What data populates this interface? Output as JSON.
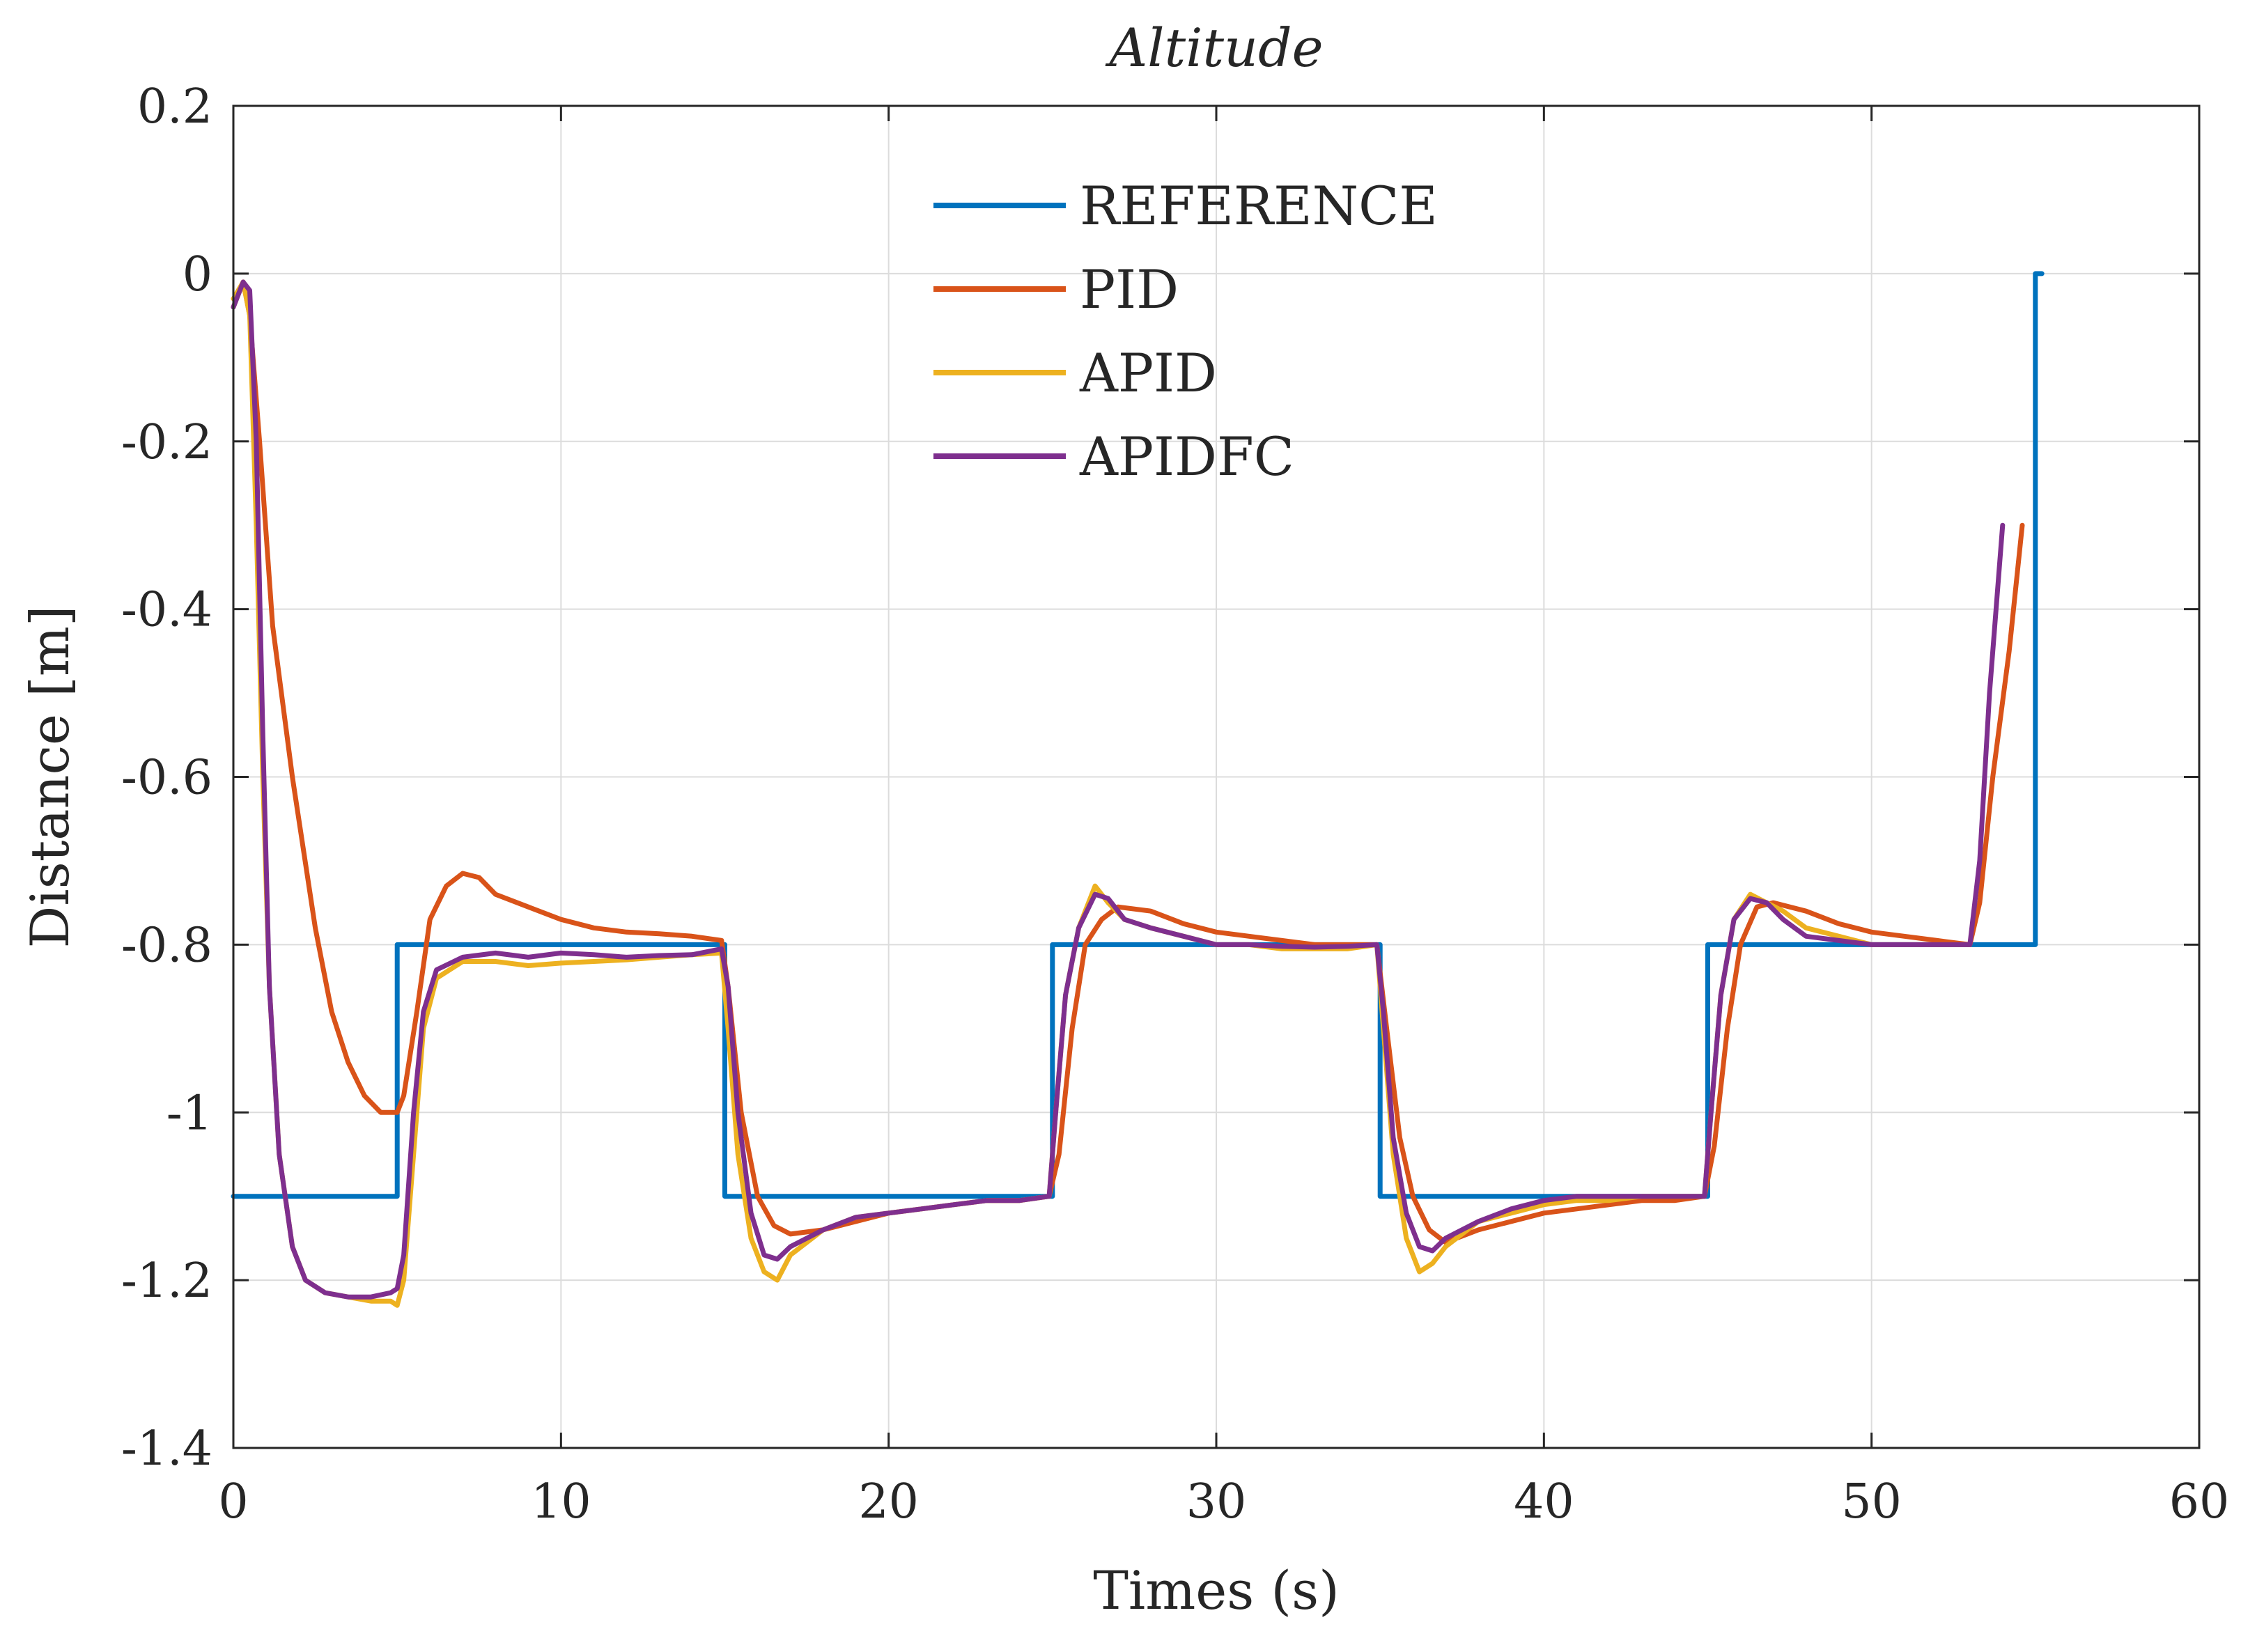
{
  "chart_data": {
    "type": "line",
    "title": "Altitude",
    "xlabel": "Times (s)",
    "ylabel": "Distance [m]",
    "xlim": [
      0,
      60
    ],
    "ylim": [
      -1.4,
      0.2
    ],
    "xticks": [
      0,
      10,
      20,
      30,
      40,
      50,
      60
    ],
    "xtick_labels": [
      "0",
      "10",
      "20",
      "30",
      "40",
      "50",
      "60"
    ],
    "yticks": [
      0.2,
      0,
      -0.2,
      -0.4,
      -0.6,
      -0.8,
      -1,
      -1.2,
      -1.4
    ],
    "ytick_labels": [
      "0.2",
      "0",
      "-0.2",
      "-0.4",
      "-0.6",
      "-0.8",
      "-1",
      "-1.2",
      "-1.4"
    ],
    "grid": true,
    "legend_position": "top-center",
    "series": [
      {
        "name": "REFERENCE",
        "color": "#0072BD",
        "points": [
          [
            0,
            -1.1
          ],
          [
            5,
            -1.1
          ],
          [
            5,
            -0.8
          ],
          [
            15,
            -0.8
          ],
          [
            15,
            -1.1
          ],
          [
            25,
            -1.1
          ],
          [
            25,
            -0.8
          ],
          [
            35,
            -0.8
          ],
          [
            35,
            -1.1
          ],
          [
            45,
            -1.1
          ],
          [
            45,
            -0.8
          ],
          [
            55,
            -0.8
          ],
          [
            55,
            0
          ],
          [
            55.2,
            0
          ]
        ]
      },
      {
        "name": "PID",
        "color": "#D95319",
        "points": [
          [
            0,
            -0.04
          ],
          [
            0.3,
            -0.01
          ],
          [
            0.5,
            -0.05
          ],
          [
            0.8,
            -0.2
          ],
          [
            1.2,
            -0.42
          ],
          [
            1.8,
            -0.6
          ],
          [
            2.5,
            -0.78
          ],
          [
            3,
            -0.88
          ],
          [
            3.5,
            -0.94
          ],
          [
            4,
            -0.98
          ],
          [
            4.5,
            -1.0
          ],
          [
            5,
            -1.0
          ],
          [
            5.2,
            -0.98
          ],
          [
            5.6,
            -0.88
          ],
          [
            6,
            -0.77
          ],
          [
            6.5,
            -0.73
          ],
          [
            7,
            -0.715
          ],
          [
            7.5,
            -0.72
          ],
          [
            8,
            -0.74
          ],
          [
            9,
            -0.755
          ],
          [
            10,
            -0.77
          ],
          [
            11,
            -0.78
          ],
          [
            12,
            -0.785
          ],
          [
            13,
            -0.787
          ],
          [
            14,
            -0.79
          ],
          [
            14.9,
            -0.795
          ],
          [
            15.1,
            -0.85
          ],
          [
            15.5,
            -1.0
          ],
          [
            16,
            -1.1
          ],
          [
            16.5,
            -1.135
          ],
          [
            17,
            -1.145
          ],
          [
            18,
            -1.14
          ],
          [
            19,
            -1.13
          ],
          [
            20,
            -1.12
          ],
          [
            21,
            -1.115
          ],
          [
            22,
            -1.11
          ],
          [
            23,
            -1.105
          ],
          [
            24,
            -1.105
          ],
          [
            24.9,
            -1.1
          ],
          [
            25.2,
            -1.05
          ],
          [
            25.6,
            -0.9
          ],
          [
            26,
            -0.8
          ],
          [
            26.5,
            -0.77
          ],
          [
            27,
            -0.755
          ],
          [
            28,
            -0.76
          ],
          [
            29,
            -0.775
          ],
          [
            30,
            -0.785
          ],
          [
            31,
            -0.79
          ],
          [
            32,
            -0.795
          ],
          [
            33,
            -0.8
          ],
          [
            34,
            -0.8
          ],
          [
            34.9,
            -0.8
          ],
          [
            35.2,
            -0.9
          ],
          [
            35.6,
            -1.03
          ],
          [
            36,
            -1.1
          ],
          [
            36.5,
            -1.14
          ],
          [
            37,
            -1.155
          ],
          [
            38,
            -1.14
          ],
          [
            39,
            -1.13
          ],
          [
            40,
            -1.12
          ],
          [
            41,
            -1.115
          ],
          [
            42,
            -1.11
          ],
          [
            43,
            -1.105
          ],
          [
            44,
            -1.105
          ],
          [
            44.9,
            -1.1
          ],
          [
            45.2,
            -1.04
          ],
          [
            45.6,
            -0.9
          ],
          [
            46,
            -0.8
          ],
          [
            46.5,
            -0.755
          ],
          [
            47,
            -0.75
          ],
          [
            48,
            -0.76
          ],
          [
            49,
            -0.775
          ],
          [
            50,
            -0.785
          ],
          [
            51,
            -0.79
          ],
          [
            52,
            -0.795
          ],
          [
            53,
            -0.8
          ],
          [
            53.3,
            -0.75
          ],
          [
            53.7,
            -0.6
          ],
          [
            54.2,
            -0.45
          ],
          [
            54.6,
            -0.3
          ]
        ]
      },
      {
        "name": "APID",
        "color": "#EDB120",
        "points": [
          [
            0,
            -0.03
          ],
          [
            0.3,
            -0.01
          ],
          [
            0.5,
            -0.05
          ],
          [
            0.7,
            -0.3
          ],
          [
            0.9,
            -0.6
          ],
          [
            1.1,
            -0.85
          ],
          [
            1.4,
            -1.05
          ],
          [
            1.8,
            -1.16
          ],
          [
            2.2,
            -1.2
          ],
          [
            2.8,
            -1.215
          ],
          [
            3.5,
            -1.22
          ],
          [
            4.2,
            -1.225
          ],
          [
            4.8,
            -1.225
          ],
          [
            5,
            -1.23
          ],
          [
            5.2,
            -1.2
          ],
          [
            5.5,
            -1.05
          ],
          [
            5.8,
            -0.9
          ],
          [
            6.2,
            -0.84
          ],
          [
            7,
            -0.82
          ],
          [
            8,
            -0.82
          ],
          [
            9,
            -0.825
          ],
          [
            10,
            -0.822
          ],
          [
            11,
            -0.82
          ],
          [
            12,
            -0.818
          ],
          [
            13,
            -0.815
          ],
          [
            14,
            -0.812
          ],
          [
            14.9,
            -0.81
          ],
          [
            15.1,
            -0.9
          ],
          [
            15.4,
            -1.05
          ],
          [
            15.8,
            -1.15
          ],
          [
            16.2,
            -1.19
          ],
          [
            16.6,
            -1.2
          ],
          [
            17,
            -1.17
          ],
          [
            18,
            -1.14
          ],
          [
            19,
            -1.125
          ],
          [
            20,
            -1.12
          ],
          [
            21,
            -1.115
          ],
          [
            22,
            -1.11
          ],
          [
            23,
            -1.105
          ],
          [
            24,
            -1.105
          ],
          [
            24.9,
            -1.1
          ],
          [
            25.1,
            -1.0
          ],
          [
            25.4,
            -0.86
          ],
          [
            25.8,
            -0.78
          ],
          [
            26.3,
            -0.73
          ],
          [
            26.7,
            -0.75
          ],
          [
            27.2,
            -0.77
          ],
          [
            28,
            -0.78
          ],
          [
            29,
            -0.79
          ],
          [
            30,
            -0.8
          ],
          [
            31,
            -0.8
          ],
          [
            32,
            -0.805
          ],
          [
            33,
            -0.805
          ],
          [
            34,
            -0.805
          ],
          [
            34.9,
            -0.8
          ],
          [
            35.1,
            -0.9
          ],
          [
            35.4,
            -1.05
          ],
          [
            35.8,
            -1.15
          ],
          [
            36.2,
            -1.19
          ],
          [
            36.6,
            -1.18
          ],
          [
            37,
            -1.16
          ],
          [
            38,
            -1.13
          ],
          [
            39,
            -1.12
          ],
          [
            40,
            -1.11
          ],
          [
            41,
            -1.105
          ],
          [
            42,
            -1.105
          ],
          [
            43,
            -1.1
          ],
          [
            44,
            -1.1
          ],
          [
            44.9,
            -1.1
          ],
          [
            45.1,
            -1.0
          ],
          [
            45.4,
            -0.86
          ],
          [
            45.8,
            -0.77
          ],
          [
            46.3,
            -0.74
          ],
          [
            46.8,
            -0.75
          ],
          [
            47.3,
            -0.76
          ],
          [
            48,
            -0.78
          ],
          [
            49,
            -0.79
          ],
          [
            50,
            -0.8
          ],
          [
            51,
            -0.8
          ],
          [
            52,
            -0.8
          ],
          [
            53,
            -0.8
          ]
        ]
      },
      {
        "name": "APIDFC",
        "color": "#7E2F8E",
        "points": [
          [
            0,
            -0.04
          ],
          [
            0.3,
            -0.01
          ],
          [
            0.5,
            -0.02
          ],
          [
            0.7,
            -0.2
          ],
          [
            0.9,
            -0.55
          ],
          [
            1.1,
            -0.85
          ],
          [
            1.4,
            -1.05
          ],
          [
            1.8,
            -1.16
          ],
          [
            2.2,
            -1.2
          ],
          [
            2.8,
            -1.215
          ],
          [
            3.5,
            -1.22
          ],
          [
            4.2,
            -1.22
          ],
          [
            4.8,
            -1.215
          ],
          [
            5,
            -1.21
          ],
          [
            5.2,
            -1.17
          ],
          [
            5.5,
            -1.0
          ],
          [
            5.8,
            -0.88
          ],
          [
            6.2,
            -0.83
          ],
          [
            7,
            -0.815
          ],
          [
            8,
            -0.81
          ],
          [
            9,
            -0.815
          ],
          [
            10,
            -0.81
          ],
          [
            11,
            -0.812
          ],
          [
            12,
            -0.815
          ],
          [
            13,
            -0.813
          ],
          [
            14,
            -0.812
          ],
          [
            14.9,
            -0.805
          ],
          [
            15.1,
            -0.85
          ],
          [
            15.4,
            -1.0
          ],
          [
            15.8,
            -1.12
          ],
          [
            16.2,
            -1.17
          ],
          [
            16.6,
            -1.175
          ],
          [
            17,
            -1.16
          ],
          [
            18,
            -1.14
          ],
          [
            19,
            -1.125
          ],
          [
            20,
            -1.12
          ],
          [
            21,
            -1.115
          ],
          [
            22,
            -1.11
          ],
          [
            23,
            -1.105
          ],
          [
            24,
            -1.105
          ],
          [
            24.9,
            -1.1
          ],
          [
            25.1,
            -1.0
          ],
          [
            25.4,
            -0.86
          ],
          [
            25.8,
            -0.78
          ],
          [
            26.3,
            -0.74
          ],
          [
            26.7,
            -0.745
          ],
          [
            27.2,
            -0.77
          ],
          [
            28,
            -0.78
          ],
          [
            29,
            -0.79
          ],
          [
            30,
            -0.8
          ],
          [
            31,
            -0.8
          ],
          [
            32,
            -0.802
          ],
          [
            33,
            -0.803
          ],
          [
            34,
            -0.802
          ],
          [
            34.9,
            -0.8
          ],
          [
            35.1,
            -0.88
          ],
          [
            35.4,
            -1.03
          ],
          [
            35.8,
            -1.12
          ],
          [
            36.2,
            -1.16
          ],
          [
            36.6,
            -1.165
          ],
          [
            37,
            -1.15
          ],
          [
            38,
            -1.13
          ],
          [
            39,
            -1.115
          ],
          [
            40,
            -1.105
          ],
          [
            41,
            -1.1
          ],
          [
            42,
            -1.1
          ],
          [
            43,
            -1.1
          ],
          [
            44,
            -1.1
          ],
          [
            44.9,
            -1.1
          ],
          [
            45.1,
            -1.0
          ],
          [
            45.4,
            -0.86
          ],
          [
            45.8,
            -0.77
          ],
          [
            46.3,
            -0.745
          ],
          [
            46.8,
            -0.75
          ],
          [
            47.3,
            -0.77
          ],
          [
            48,
            -0.79
          ],
          [
            49,
            -0.795
          ],
          [
            50,
            -0.8
          ],
          [
            51,
            -0.8
          ],
          [
            52,
            -0.8
          ],
          [
            53,
            -0.8
          ],
          [
            53.3,
            -0.7
          ],
          [
            53.6,
            -0.5
          ],
          [
            54,
            -0.3
          ]
        ]
      }
    ]
  }
}
